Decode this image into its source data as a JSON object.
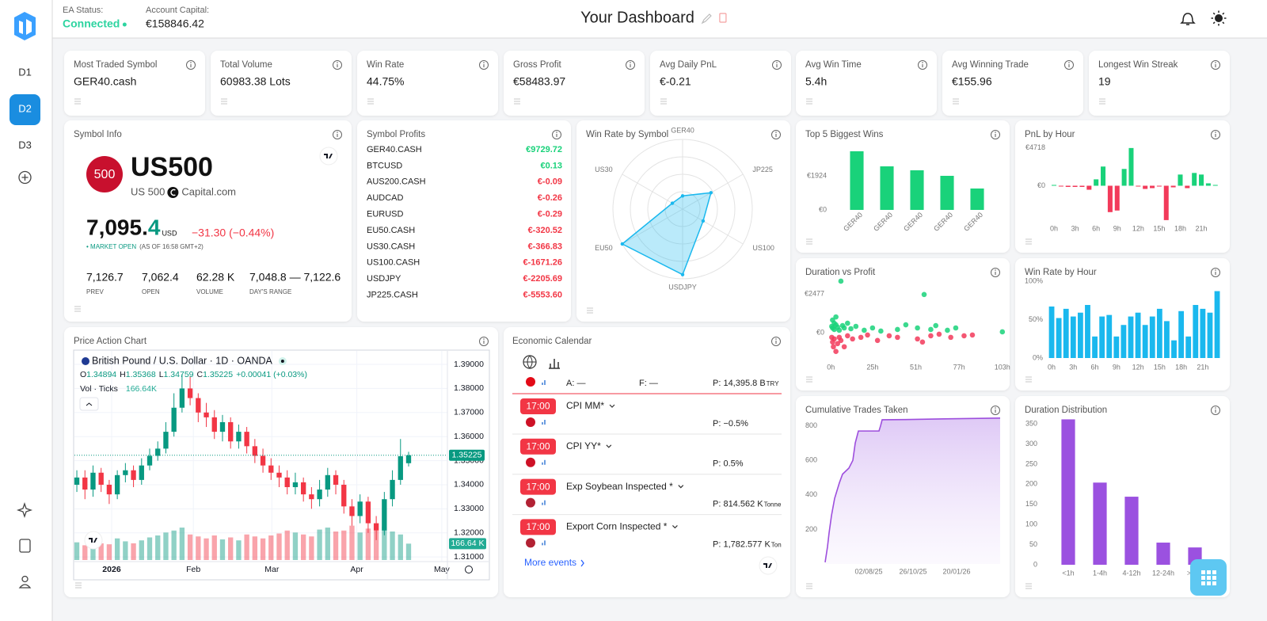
{
  "header": {
    "ea_label": "EA Status:",
    "ea_status": "Connected",
    "capital_label": "Account Capital:",
    "capital": "€158846.42",
    "title": "Your Dashboard"
  },
  "sidebar": {
    "tabs": [
      "D1",
      "D2",
      "D3"
    ],
    "active": 1
  },
  "stats": [
    {
      "label": "Most Traded Symbol",
      "value": "GER40.cash"
    },
    {
      "label": "Total Volume",
      "value": "60983.38 Lots"
    },
    {
      "label": "Win Rate",
      "value": "44.75%"
    },
    {
      "label": "Gross Profit",
      "value": "€58483.97"
    },
    {
      "label": "Avg Daily PnL",
      "value": "€-0.21"
    },
    {
      "label": "Avg Win Time",
      "value": "5.4h"
    },
    {
      "label": "Avg Winning Trade",
      "value": "€155.96"
    },
    {
      "label": "Longest Win Streak",
      "value": "19"
    }
  ],
  "symbol_info": {
    "title": "Symbol Info",
    "badge": "500",
    "symbol": "US500",
    "description": "US 500",
    "broker": "Capital.com",
    "price": "7,095.",
    "price_tail": "4",
    "currency": "USD",
    "change": "−31.30 (−0.44%)",
    "market": "• MARKET OPEN",
    "as_of": "(AS OF 16:58 GMT+2)",
    "stats": [
      {
        "value": "7,126.7",
        "label": "PREV"
      },
      {
        "value": "7,062.4",
        "label": "OPEN"
      },
      {
        "value": "62.28 K",
        "label": "VOLUME"
      },
      {
        "value": "7,048.8 — 7,122.6",
        "label": "DAY'S RANGE"
      }
    ]
  },
  "symbol_profits": {
    "title": "Symbol Profits",
    "rows": [
      {
        "symbol": "GER40.CASH",
        "profit": "€9729.72"
      },
      {
        "symbol": "BTCUSD",
        "profit": "€0.13"
      },
      {
        "symbol": "AUS200.CASH",
        "profit": "€-0.09"
      },
      {
        "symbol": "AUDCAD",
        "profit": "€-0.26"
      },
      {
        "symbol": "EURUSD",
        "profit": "€-0.29"
      },
      {
        "symbol": "EU50.CASH",
        "profit": "€-320.52"
      },
      {
        "symbol": "US30.CASH",
        "profit": "€-366.83"
      },
      {
        "symbol": "US100.CASH",
        "profit": "€-1671.26"
      },
      {
        "symbol": "USDJPY",
        "profit": "€-2205.69"
      },
      {
        "symbol": "JP225.CASH",
        "profit": "€-5553.60"
      }
    ]
  },
  "calendar": {
    "title": "Economic Calendar",
    "rows": [
      {
        "actual": "A: —",
        "forecast": "F: —",
        "previous": "P: 14,395.8 B",
        "unit": "TRY"
      },
      {
        "time": "17:00",
        "event": "CPI MM*",
        "previous": "P: −0.5%"
      },
      {
        "time": "17:00",
        "event": "CPI YY*",
        "previous": "P: 0.5%"
      },
      {
        "time": "17:00",
        "event": "Exp Soybean Inspected *",
        "previous": "P: 814.562 K",
        "unit": "Tonne"
      },
      {
        "time": "17:00",
        "event": "Export Corn Inspected *",
        "previous": "P: 1,782.577 K",
        "unit": "Ton"
      }
    ],
    "more": "More events"
  },
  "chart_data": [
    {
      "type": "candlestick",
      "title": "Price Action Chart",
      "instrument": "British Pound / U.S. Dollar · 1D · OANDA",
      "ohlc": [
        {
          "key": "O",
          "value": "1.34894"
        },
        {
          "key": "H",
          "value": "1.35368"
        },
        {
          "key": "L",
          "value": "1.34759"
        },
        {
          "key": "C",
          "value": "1.35225"
        }
      ],
      "change": "+0.00041 (+0.03%)",
      "volume_name": "Vol · Ticks",
      "volume_legend": "166.64K",
      "volume_tag": "166.64 K",
      "up_color": "#089981",
      "down_color": "#f23645",
      "open": [
        1.34,
        1.343,
        1.338,
        1.345,
        1.34,
        1.336,
        1.344,
        1.346,
        1.342,
        1.348,
        1.352,
        1.355,
        1.362,
        1.372,
        1.38,
        1.376,
        1.37,
        1.368,
        1.362,
        1.366,
        1.358,
        1.362,
        1.356,
        1.352,
        1.348,
        1.345,
        1.343,
        1.339,
        1.341,
        1.336,
        1.334,
        1.338,
        1.344,
        1.34,
        1.331,
        1.327,
        1.333,
        1.324,
        1.321,
        1.334,
        1.342,
        1.34894
      ],
      "high": [
        1.346,
        1.346,
        1.348,
        1.347,
        1.342,
        1.346,
        1.349,
        1.348,
        1.351,
        1.355,
        1.358,
        1.366,
        1.378,
        1.386,
        1.385,
        1.378,
        1.374,
        1.371,
        1.369,
        1.368,
        1.365,
        1.364,
        1.359,
        1.355,
        1.351,
        1.348,
        1.346,
        1.345,
        1.343,
        1.339,
        1.342,
        1.347,
        1.346,
        1.342,
        1.334,
        1.336,
        1.335,
        1.327,
        1.337,
        1.346,
        1.359,
        1.35368
      ],
      "low": [
        1.337,
        1.334,
        1.335,
        1.337,
        1.332,
        1.334,
        1.341,
        1.339,
        1.34,
        1.346,
        1.35,
        1.353,
        1.36,
        1.37,
        1.373,
        1.366,
        1.364,
        1.359,
        1.358,
        1.355,
        1.355,
        1.353,
        1.349,
        1.345,
        1.342,
        1.339,
        1.336,
        1.336,
        1.333,
        1.33,
        1.331,
        1.335,
        1.336,
        1.328,
        1.323,
        1.324,
        1.32,
        1.317,
        1.319,
        1.331,
        1.34,
        1.34759
      ],
      "close": [
        1.343,
        1.338,
        1.345,
        1.34,
        1.336,
        1.344,
        1.346,
        1.342,
        1.348,
        1.352,
        1.355,
        1.362,
        1.372,
        1.38,
        1.376,
        1.37,
        1.368,
        1.362,
        1.366,
        1.358,
        1.362,
        1.356,
        1.352,
        1.348,
        1.345,
        1.343,
        1.339,
        1.341,
        1.336,
        1.334,
        1.338,
        1.344,
        1.34,
        1.331,
        1.327,
        1.333,
        1.324,
        1.321,
        1.334,
        1.342,
        1.35184,
        1.35225
      ],
      "volume": [
        180,
        150,
        210,
        170,
        160,
        220,
        190,
        170,
        200,
        230,
        250,
        280,
        300,
        330,
        260,
        240,
        220,
        250,
        210,
        230,
        200,
        260,
        240,
        220,
        250,
        270,
        300,
        280,
        260,
        240,
        310,
        330,
        290,
        300,
        350,
        280,
        320,
        300,
        340,
        290,
        260,
        166.64
      ],
      "volume_ylim": [
        0,
        500
      ],
      "last_price": {
        "value": 1.35225,
        "label": "1.35225"
      },
      "ylim": [
        1.3084,
        1.3956
      ],
      "yticks": [
        {
          "value": 1.39,
          "label": "1.39000"
        },
        {
          "value": 1.38,
          "label": "1.38000"
        },
        {
          "value": 1.37,
          "label": "1.37000"
        },
        {
          "value": 1.36,
          "label": "1.36000"
        },
        {
          "value": 1.35,
          "label": "1.35000"
        },
        {
          "value": 1.34,
          "label": "1.34000"
        },
        {
          "value": 1.33,
          "label": "1.33000"
        },
        {
          "value": 1.32,
          "label": "1.32000"
        },
        {
          "value": 1.31,
          "label": "1.31000"
        }
      ],
      "xlim": [
        -0.2,
        45.6
      ],
      "xticks": [
        {
          "value": 4.3,
          "label": "2026"
        },
        {
          "value": 14.4,
          "label": "Feb"
        },
        {
          "value": 24.1,
          "label": "Mar"
        },
        {
          "value": 34.6,
          "label": "Apr"
        },
        {
          "value": 45.1,
          "label": "May"
        }
      ],
      "grid": true
    },
    {
      "type": "radar",
      "title": "Win Rate by Symbol",
      "categories": [
        "GER40",
        "JP225",
        "US100",
        "USDJPY",
        "EU50",
        "US30"
      ],
      "values": [
        19,
        47,
        34,
        94,
        100,
        17
      ],
      "color": "#1ab8ee",
      "ylim": [
        0,
        100
      ],
      "rticks": [
        25,
        50,
        75,
        100
      ]
    },
    {
      "type": "bar",
      "title": "Top 5 Biggest Wins",
      "categories": [
        "GER40",
        "GER40",
        "GER40",
        "GER40",
        "GER40"
      ],
      "values": [
        3310,
        2459,
        2236,
        1924,
        1208
      ],
      "color": "#19d27a",
      "ylim": [
        0,
        3600
      ],
      "yticks": [
        {
          "value": 0,
          "label": "€0"
        },
        {
          "value": 1924,
          "label": "€1924"
        }
      ]
    },
    {
      "type": "bar",
      "title": "PnL by Hour",
      "categories": [
        "0h",
        null,
        null,
        "3h",
        null,
        null,
        "6h",
        null,
        null,
        "9h",
        null,
        null,
        "12h",
        null,
        null,
        "15h",
        null,
        null,
        "18h",
        null,
        null,
        "21h",
        null,
        null
      ],
      "values": [
        100,
        -100,
        -150,
        -150,
        -150,
        -500,
        800,
        2400,
        -3300,
        -3100,
        2100,
        4718,
        -100,
        -400,
        -300,
        -100,
        -4300,
        -200,
        1400,
        -300,
        1600,
        1400,
        300,
        100
      ],
      "pos_color": "#19d27a",
      "neg_color": "#f23a5a",
      "ylim": [
        -5500,
        5200
      ],
      "yticks": [
        {
          "value": 0,
          "label": "€0"
        },
        {
          "value": 4718,
          "label": "€4718"
        }
      ]
    },
    {
      "type": "scatter",
      "title": "Duration vs Profit",
      "x": [
        0.5,
        1,
        1,
        2,
        2,
        3,
        3,
        4,
        5,
        6,
        7,
        8,
        10,
        12,
        15,
        20,
        25,
        30,
        40,
        45,
        52,
        56,
        60,
        63,
        70,
        75,
        103,
        0.5,
        1,
        1.5,
        2,
        3,
        4,
        5,
        6,
        8,
        10,
        13,
        18,
        22,
        28,
        35,
        40,
        52,
        55,
        60,
        65,
        72,
        80,
        85
      ],
      "values": [
        400,
        800,
        300,
        600,
        200,
        500,
        1000,
        350,
        150,
        3280,
        450,
        300,
        600,
        250,
        400,
        150,
        300,
        100,
        200,
        500,
        300,
        2430,
        200,
        450,
        150,
        300,
        50,
        -300,
        -600,
        -900,
        -400,
        -1200,
        -700,
        -300,
        -500,
        -900,
        -200,
        -400,
        -300,
        -150,
        -500,
        -200,
        -300,
        -400,
        -600,
        -200,
        -100,
        -300,
        -200,
        -150
      ],
      "pos_color": "#19d27a",
      "neg_color": "#f23a5a",
      "xlim": [
        -3,
        105
      ],
      "ylim": [
        -1770,
        3430
      ],
      "xticks": [
        {
          "value": 0,
          "label": "0h"
        },
        {
          "value": 25,
          "label": "25h"
        },
        {
          "value": 51,
          "label": "51h"
        },
        {
          "value": 77,
          "label": "77h"
        },
        {
          "value": 103,
          "label": "103h"
        }
      ],
      "yticks": [
        {
          "value": 0,
          "label": "€0"
        },
        {
          "value": 2477,
          "label": "€2477"
        }
      ]
    },
    {
      "type": "bar",
      "title": "Win Rate by Hour",
      "categories": [
        "0h",
        null,
        null,
        "3h",
        null,
        null,
        "6h",
        null,
        null,
        "9h",
        null,
        null,
        "12h",
        null,
        null,
        "15h",
        null,
        null,
        "18h",
        null,
        null,
        "21h",
        null,
        null
      ],
      "values": [
        67,
        52,
        64,
        54,
        59,
        69,
        28,
        54,
        56,
        28,
        43,
        54,
        59,
        43,
        54,
        64,
        48,
        23,
        61,
        28,
        69,
        64,
        59,
        87
      ],
      "color": "#1ab8ee",
      "ylim": [
        0,
        103
      ],
      "yticks": [
        {
          "value": 0,
          "label": "0%"
        },
        {
          "value": 50,
          "label": "50%"
        },
        {
          "value": 100,
          "label": "100%"
        }
      ]
    },
    {
      "type": "area",
      "title": "Cumulative Trades Taken",
      "x": [
        0,
        3,
        5,
        8,
        12,
        18,
        22,
        30,
        35,
        38,
        42,
        68,
        70,
        72,
        100,
        150,
        221
      ],
      "values": [
        10,
        100,
        180,
        280,
        380,
        470,
        520,
        555,
        600,
        700,
        770,
        770,
        800,
        835,
        836,
        840,
        845
      ],
      "color": "#9d4edd",
      "xlim": [
        0,
        221
      ],
      "ylim": [
        0,
        860
      ],
      "xticks": [
        {
          "value": 55,
          "label": "02/08/25"
        },
        {
          "value": 111,
          "label": "26/10/25"
        },
        {
          "value": 166,
          "label": "20/01/26"
        }
      ],
      "yticks": [
        200,
        400,
        600,
        800
      ]
    },
    {
      "type": "bar",
      "title": "Duration Distribution",
      "categories": [
        "<1h",
        "1-4h",
        "4-12h",
        "12-24h",
        ">24h"
      ],
      "values": [
        361,
        204,
        169,
        55,
        43
      ],
      "color": "#9b51e0",
      "ylim": [
        0,
        365
      ],
      "yticks": [
        0,
        50,
        100,
        150,
        200,
        250,
        300,
        350
      ]
    }
  ]
}
